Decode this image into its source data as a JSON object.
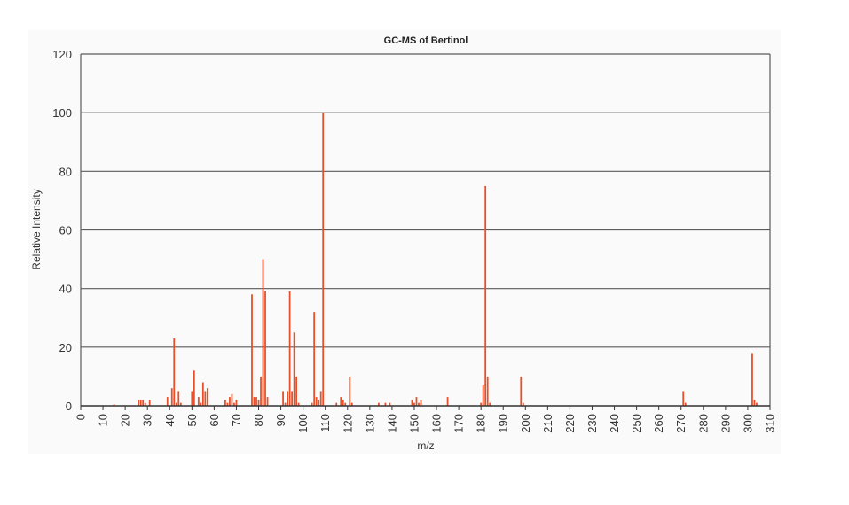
{
  "chart_data": {
    "type": "bar",
    "title": "GC-MS of Bertinol",
    "xlabel": "m/z",
    "ylabel": "Relative Intensity",
    "xlim": [
      0,
      310
    ],
    "ylim": [
      0,
      120
    ],
    "x_ticks": [
      0,
      10,
      20,
      30,
      40,
      50,
      60,
      70,
      80,
      90,
      100,
      110,
      120,
      130,
      140,
      150,
      160,
      170,
      180,
      190,
      200,
      210,
      220,
      230,
      240,
      250,
      260,
      270,
      280,
      290,
      300,
      310
    ],
    "y_ticks": [
      0,
      20,
      40,
      60,
      80,
      100,
      120
    ],
    "grid": "horizontal",
    "bar_color": "#e8502b",
    "gridline_color": "#5a5a5a",
    "x": [
      15,
      26,
      27,
      28,
      29,
      31,
      39,
      41,
      42,
      43,
      44,
      45,
      50,
      51,
      53,
      54,
      55,
      56,
      57,
      65,
      66,
      67,
      68,
      69,
      70,
      77,
      78,
      79,
      80,
      81,
      82,
      83,
      84,
      91,
      92,
      93,
      94,
      95,
      96,
      97,
      98,
      104,
      105,
      106,
      107,
      108,
      109,
      115,
      117,
      118,
      119,
      121,
      122,
      134,
      137,
      139,
      149,
      150,
      151,
      152,
      153,
      165,
      180,
      181,
      182,
      183,
      184,
      198,
      199,
      271,
      272,
      302,
      303,
      304
    ],
    "values": [
      0.5,
      2,
      2,
      2,
      1,
      2,
      3,
      6,
      23,
      1,
      5,
      1,
      5,
      12,
      3,
      1,
      8,
      5,
      6,
      2,
      1,
      3,
      4,
      1,
      2,
      38,
      3,
      3,
      2,
      10,
      50,
      39,
      3,
      5,
      1,
      5,
      39,
      5,
      25,
      10,
      1,
      1,
      32,
      3,
      2,
      5,
      100,
      1,
      3,
      2,
      1,
      10,
      1,
      1,
      1,
      1,
      2,
      1,
      3,
      1,
      2,
      3,
      1,
      7,
      75,
      10,
      1,
      10,
      1,
      5,
      1,
      18,
      2,
      1
    ]
  }
}
